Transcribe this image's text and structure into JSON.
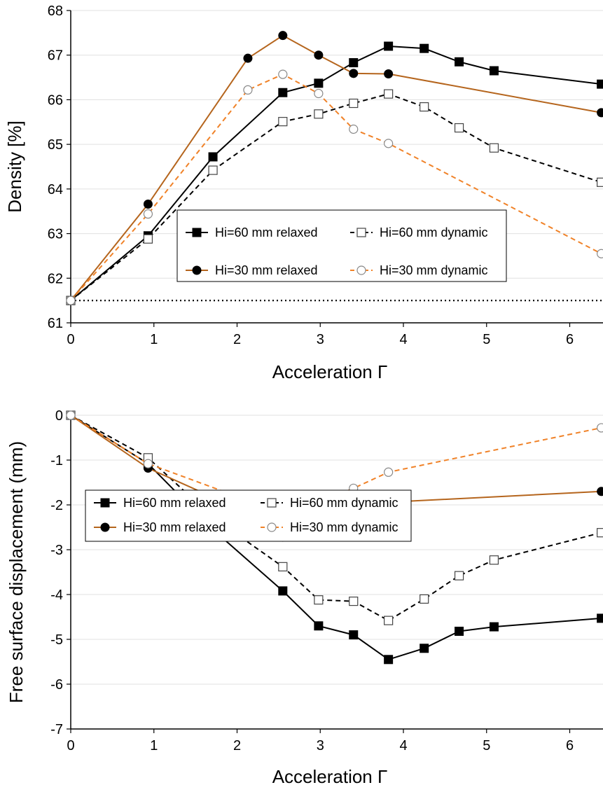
{
  "chart_data": [
    {
      "type": "line",
      "xlabel": "Acceleration Γ",
      "ylabel": "Density [%]",
      "xlim": [
        0,
        6.4
      ],
      "ylim": [
        61,
        68
      ],
      "xticks": [
        "0",
        "1",
        "2",
        "3",
        "4",
        "5",
        "6"
      ],
      "yticks": [
        "61",
        "62",
        "63",
        "64",
        "65",
        "66",
        "67",
        "68"
      ],
      "grid": "horizontal",
      "legend_position": "lower-right",
      "reference_line": {
        "y": 61.5,
        "style": "dotted"
      },
      "series": [
        {
          "name": "Hi=60 mm relaxed",
          "color": "#000000",
          "marker": "filled-square",
          "dash": "solid",
          "x": [
            0,
            0.93,
            1.71,
            2.55,
            2.98,
            3.4,
            3.82,
            4.25,
            4.67,
            5.09,
            6.38
          ],
          "y": [
            61.5,
            62.95,
            64.72,
            66.16,
            66.37,
            66.83,
            67.2,
            67.15,
            66.85,
            66.65,
            66.35
          ]
        },
        {
          "name": "Hi=60 mm dynamic",
          "color": "#000000",
          "marker": "open-square",
          "dash": "dashed",
          "x": [
            0,
            0.93,
            1.71,
            2.55,
            2.98,
            3.4,
            3.82,
            4.25,
            4.67,
            5.09,
            6.38
          ],
          "y": [
            61.5,
            62.88,
            64.42,
            65.51,
            65.68,
            65.92,
            66.13,
            65.84,
            65.37,
            64.92,
            64.15
          ]
        },
        {
          "name": "Hi=30 mm relaxed",
          "color": "#b5651d",
          "marker": "filled-circle",
          "dash": "solid",
          "x": [
            0,
            0.93,
            2.13,
            2.55,
            2.98,
            3.4,
            3.82,
            6.38
          ],
          "y": [
            61.5,
            63.66,
            66.93,
            67.44,
            67.0,
            66.59,
            66.58,
            65.71
          ]
        },
        {
          "name": "Hi=30 mm dynamic",
          "color": "#f08228",
          "marker": "open-circle",
          "dash": "dashed",
          "x": [
            0,
            0.93,
            2.13,
            2.55,
            2.98,
            3.4,
            3.82,
            6.38
          ],
          "y": [
            61.5,
            63.44,
            66.22,
            66.57,
            66.14,
            65.34,
            65.02,
            62.55
          ]
        }
      ]
    },
    {
      "type": "line",
      "xlabel": "Acceleration Γ",
      "ylabel": "Free surface displacement (mm)",
      "xlim": [
        0,
        6.4
      ],
      "ylim": [
        -7,
        0
      ],
      "xticks": [
        "0",
        "1",
        "2",
        "3",
        "4",
        "5",
        "6"
      ],
      "yticks": [
        "-7",
        "-6",
        "-5",
        "-4",
        "-3",
        "-2",
        "-1",
        "0"
      ],
      "grid": "horizontal",
      "legend_position": "lower-left",
      "series": [
        {
          "name": "Hi=60 mm relaxed",
          "color": "#000000",
          "marker": "filled-square",
          "dash": "solid",
          "x": [
            0,
            0.93,
            1.71,
            2.55,
            2.98,
            3.4,
            3.82,
            4.25,
            4.67,
            5.09,
            6.38
          ],
          "y": [
            0,
            -1.08,
            -2.55,
            -3.92,
            -4.7,
            -4.9,
            -5.45,
            -5.2,
            -4.82,
            -4.72,
            -4.53
          ]
        },
        {
          "name": "Hi=60 mm dynamic",
          "color": "#000000",
          "marker": "open-square",
          "dash": "dashed",
          "x": [
            0,
            0.93,
            1.71,
            2.55,
            2.98,
            3.4,
            3.82,
            4.25,
            4.67,
            5.09,
            6.38
          ],
          "y": [
            0,
            -0.95,
            -2.28,
            -3.38,
            -4.12,
            -4.15,
            -4.58,
            -4.1,
            -3.58,
            -3.23,
            -2.62
          ]
        },
        {
          "name": "Hi=30 mm relaxed",
          "color": "#b5651d",
          "marker": "filled-circle",
          "dash": "solid",
          "x": [
            0,
            0.93,
            2.13,
            2.55,
            2.98,
            3.4,
            3.82,
            6.38
          ],
          "y": [
            0,
            -1.18,
            -2.18,
            -2.72,
            -2.29,
            -2.17,
            -1.94,
            -1.7
          ]
        },
        {
          "name": "Hi=30 mm dynamic",
          "color": "#f08228",
          "marker": "open-circle",
          "dash": "dashed",
          "x": [
            0,
            0.93,
            2.13,
            2.55,
            2.98,
            3.4,
            3.82,
            6.38
          ],
          "y": [
            0,
            -1.08,
            -1.9,
            -2.37,
            -1.95,
            -1.63,
            -1.27,
            -0.28
          ]
        }
      ]
    }
  ]
}
